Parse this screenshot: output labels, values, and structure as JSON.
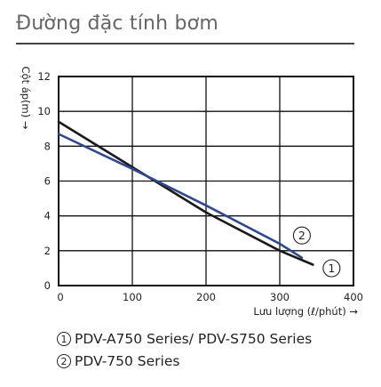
{
  "title": "Đường đặc tính bơm",
  "chart_data": {
    "type": "line",
    "xlabel": "Lưu lượng (ℓ/phút) →",
    "ylabel": "Cột áp(m) →",
    "xlim": [
      0,
      400
    ],
    "ylim": [
      0,
      12
    ],
    "xticks": [
      "0",
      "100",
      "200",
      "300",
      "400"
    ],
    "yticks": [
      "0",
      "2",
      "4",
      "6",
      "8",
      "10",
      "12"
    ],
    "grid": true,
    "series": [
      {
        "name": "PDV-A750 Series/ PDV-S750 Series",
        "marker": "1",
        "color": "#1a1a1a",
        "x": [
          0,
          100,
          200,
          300,
          345
        ],
        "y": [
          9.4,
          6.8,
          4.2,
          2.0,
          1.2
        ]
      },
      {
        "name": "PDV-750 Series",
        "marker": "2",
        "color": "#2e4a8e",
        "x": [
          0,
          100,
          200,
          300,
          330
        ],
        "y": [
          8.7,
          6.7,
          4.6,
          2.4,
          1.6
        ]
      }
    ]
  },
  "legend": [
    {
      "num": "1",
      "label": "PDV-A750 Series/ PDV-S750 Series"
    },
    {
      "num": "2",
      "label": "PDV-750 Series"
    }
  ]
}
